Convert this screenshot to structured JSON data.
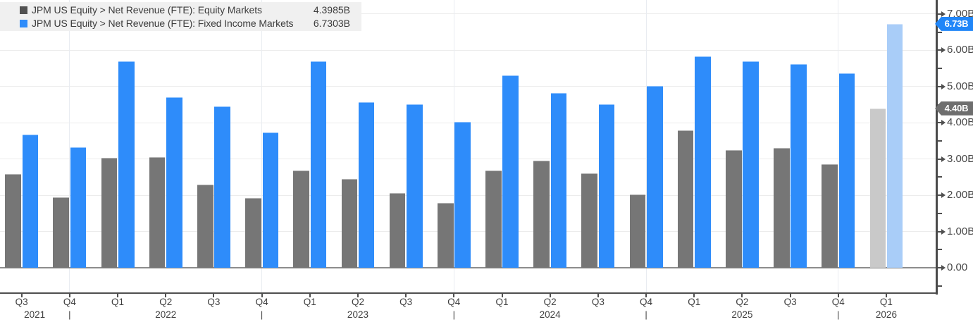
{
  "legend": {
    "items": [
      {
        "label": "JPM US Equity > Net Revenue (FTE): Equity Markets",
        "value": "4.3985B",
        "swatch_color": "#515151"
      },
      {
        "label": "JPM US Equity > Net Revenue (FTE): Fixed Income Markets",
        "value": "6.7303B",
        "swatch_color": "#2e8cfa"
      }
    ]
  },
  "y_axis": {
    "ticks": [
      {
        "label": "7.00B",
        "value": 7
      },
      {
        "label": "6.00B",
        "value": 6
      },
      {
        "label": "5.00B",
        "value": 5
      },
      {
        "label": "4.00B",
        "value": 4
      },
      {
        "label": "3.00B",
        "value": 3
      },
      {
        "label": "2.00B",
        "value": 2
      },
      {
        "label": "1.00B",
        "value": 1
      },
      {
        "label": "0.00",
        "value": 0
      }
    ],
    "minor_tick_values": [
      6.5,
      5.5,
      4.5,
      3.5,
      2.5,
      1.5,
      0.5,
      -0.5
    ],
    "tags": [
      {
        "text": "6.73B",
        "value": 6.7303,
        "bg": "#2186f8"
      },
      {
        "text": "4.40B",
        "value": 4.3985,
        "bg": "#6e6e6e"
      }
    ]
  },
  "x_axis": {
    "quarters": [
      "Q3",
      "Q4",
      "Q1",
      "Q2",
      "Q3",
      "Q4",
      "Q1",
      "Q2",
      "Q3",
      "Q4",
      "Q1",
      "Q2",
      "Q3",
      "Q4",
      "Q1",
      "Q2",
      "Q3",
      "Q4",
      "Q1"
    ],
    "years": [
      "2021",
      "2022",
      "2023",
      "2024",
      "2025",
      "2026"
    ],
    "year_separator_glyph": "|"
  },
  "chart_data": {
    "type": "bar",
    "categories": [
      "Q3 2021",
      "Q4 2021",
      "Q1 2022",
      "Q2 2022",
      "Q3 2022",
      "Q4 2022",
      "Q1 2023",
      "Q2 2023",
      "Q3 2023",
      "Q4 2023",
      "Q1 2024",
      "Q2 2024",
      "Q3 2024",
      "Q4 2024",
      "Q1 2025",
      "Q2 2025",
      "Q3 2025",
      "Q4 2025",
      "Q1 2026"
    ],
    "series": [
      {
        "name": "JPM US Equity > Net Revenue (FTE): Equity Markets",
        "color": "#767676",
        "highlight_last_color": "#c9c9c9",
        "last_value_label": "4.3985B",
        "values": [
          2.59,
          1.95,
          3.04,
          3.06,
          2.29,
          1.93,
          2.68,
          2.45,
          2.06,
          1.78,
          2.68,
          2.96,
          2.61,
          2.03,
          3.8,
          3.24,
          3.31,
          2.85,
          4.3985
        ]
      },
      {
        "name": "JPM US Equity > Net Revenue (FTE): Fixed Income Markets",
        "color": "#2e8cfa",
        "highlight_last_color": "#a9cdf8",
        "last_value_label": "6.7303B",
        "values": [
          3.67,
          3.33,
          5.7,
          4.7,
          4.46,
          3.73,
          5.69,
          4.56,
          4.51,
          4.02,
          5.3,
          4.82,
          4.51,
          5.01,
          5.84,
          5.69,
          5.62,
          5.37,
          6.7303
        ]
      }
    ],
    "ylabel": "Net Revenue (FTE)",
    "ylim": [
      -0.68,
      7.39
    ],
    "y_tick_interval": 1,
    "grid": true,
    "legend_position": "top-left",
    "highlight_last_bar_pair": true
  },
  "colors": {
    "grid": "#ececec",
    "zero_line": "#8c8c8c",
    "axis_frame": "#4f4f4f",
    "background": "#ffffff",
    "legend_background": "#f0f0f0"
  }
}
